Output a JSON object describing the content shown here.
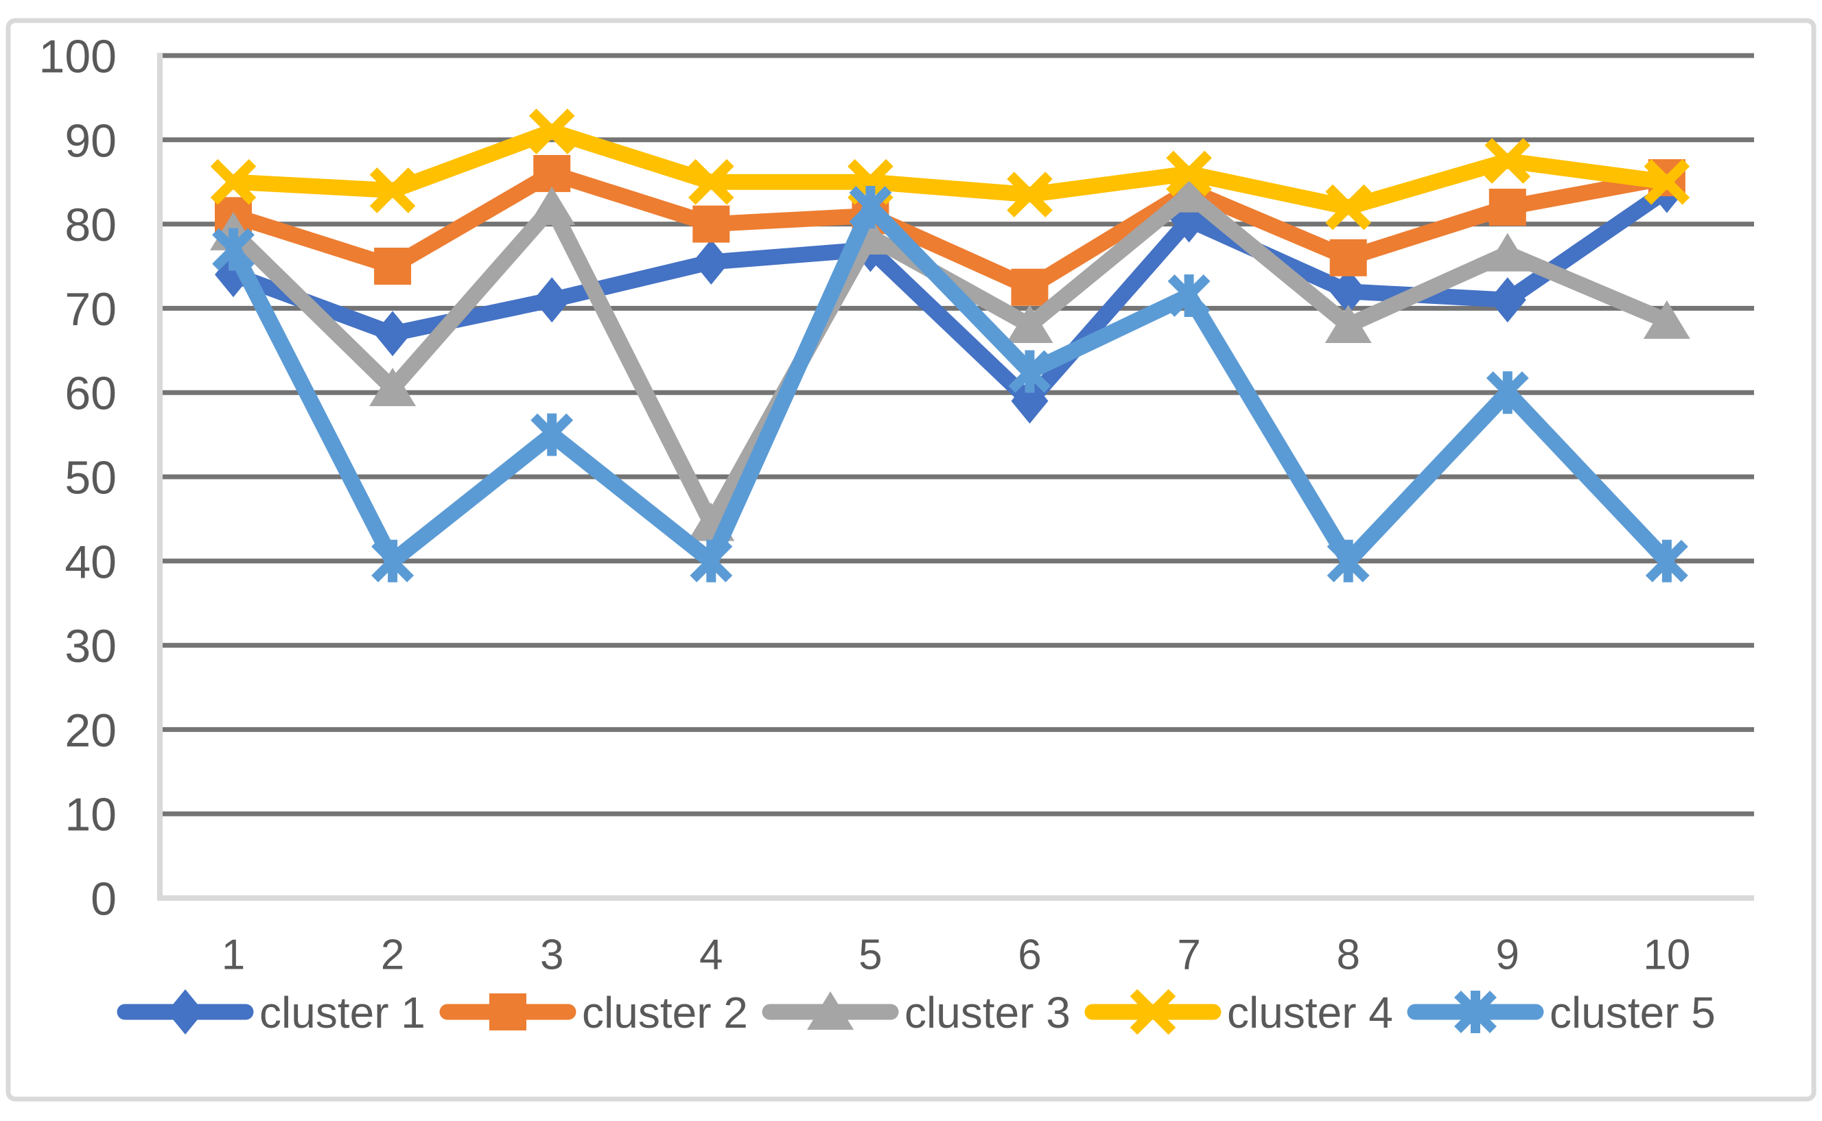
{
  "chart_data": {
    "type": "line",
    "title": "",
    "x": [
      1,
      2,
      3,
      4,
      5,
      6,
      7,
      8,
      9,
      10
    ],
    "xticks": [
      "1",
      "2",
      "3",
      "4",
      "5",
      "6",
      "7",
      "8",
      "9",
      "10"
    ],
    "yticks": [
      "0",
      "10",
      "20",
      "30",
      "40",
      "50",
      "60",
      "70",
      "80",
      "90",
      "100"
    ],
    "ylim": [
      0,
      100
    ],
    "ytick_step": 10,
    "grid": "horizontal",
    "legend_position": "bottom",
    "series": [
      {
        "name": "cluster 1",
        "marker": "diamond",
        "color": "#4472C4",
        "values": [
          74,
          67,
          71,
          75.5,
          77,
          59,
          80.5,
          72,
          71,
          84
        ]
      },
      {
        "name": "cluster 2",
        "marker": "square",
        "color": "#ED7D31",
        "values": [
          81,
          75,
          86,
          80,
          81,
          72.5,
          84,
          76,
          82,
          85.5
        ]
      },
      {
        "name": "cluster 3",
        "marker": "triangle",
        "color": "#A5A5A5",
        "values": [
          79,
          60.5,
          82,
          44.5,
          78.5,
          68,
          83.5,
          68,
          76.5,
          68.5
        ]
      },
      {
        "name": "cluster 4",
        "marker": "x",
        "color": "#FFC000",
        "values": [
          85,
          84,
          91,
          85,
          85,
          83.5,
          86,
          82,
          87.5,
          85
        ]
      },
      {
        "name": "cluster 5",
        "marker": "asterisk",
        "color": "#5B9BD5",
        "values": [
          77,
          40,
          55,
          40,
          82,
          62.5,
          71.5,
          40,
          60,
          40
        ]
      }
    ],
    "colors": {
      "gridline": "#747474",
      "axis_text": "#595959",
      "frame_border": "#d9d9d9",
      "axis_line": "#d9d9d9",
      "background": "#ffffff"
    }
  }
}
